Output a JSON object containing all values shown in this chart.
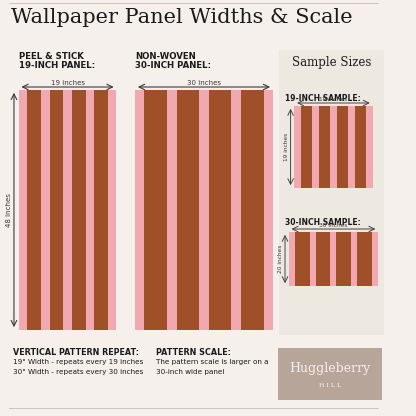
{
  "title": "Wallpaper Panel Widths & Scale",
  "bg_color": "#f5f0eb",
  "pink": "#f2a8b0",
  "brown": "#a05028",
  "sample_bg": "#ede8e0",
  "text_dark": "#1a1a1a",
  "label_color": "#3a3a3a",
  "huggleberry_bg": "#b8a59a",
  "huggleberry_text": "#f5efe9",
  "bottom_text_left_1": "VERTICAL PATTERN REPEAT:",
  "bottom_text_left_2": "19\" Width - repeats every 19 inches",
  "bottom_text_left_3": "30\" Width - repeats every 30 inches",
  "bottom_text_right_1": "PATTERN SCALE:",
  "bottom_text_right_2": "The pattern scale is larger on a",
  "bottom_text_right_3": "30-inch wide panel",
  "panel1_label1": "PEEL & STICK",
  "panel1_label2": "19-INCH PANEL:",
  "panel2_label1": "NON-WOVEN",
  "panel2_label2": "30-INCH PANEL:",
  "sample_title": "Sample Sizes",
  "sample1_label": "19-INCH SAMPLE:",
  "sample2_label": "30-INCH SAMPLE:",
  "dim_19w": "19 inches",
  "dim_30w": "30 inches",
  "dim_48h": "48 inches",
  "dim_19h": "19 inches",
  "dim_20h": "20 inches"
}
